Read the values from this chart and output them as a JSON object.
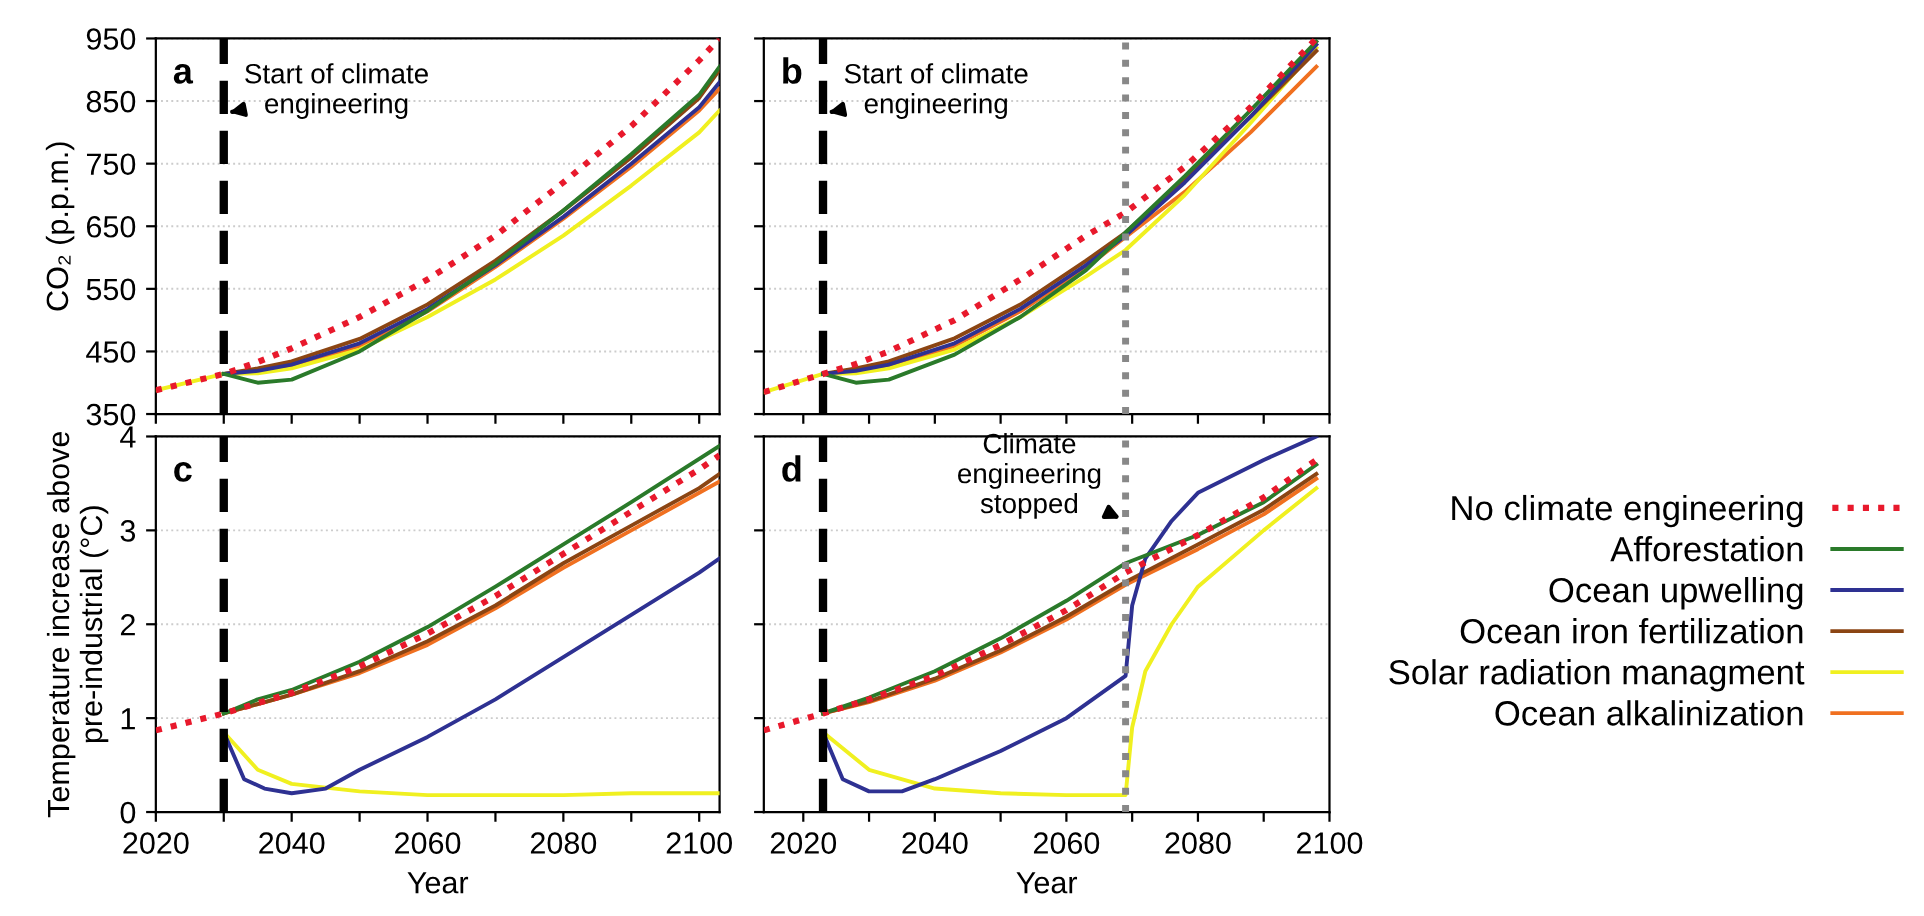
{
  "chart_data": [
    {
      "type": "line",
      "title": "a",
      "ylabel": "CO₂ (p.p.m.)",
      "xlim": [
        2020,
        2103
      ],
      "ylim": [
        350,
        950
      ],
      "yticks": [
        350,
        450,
        550,
        650,
        750,
        850,
        950
      ],
      "xticks": [
        {
          "value": 2020,
          "label": null
        },
        {
          "value": 2030,
          "label": null
        },
        {
          "value": 2040,
          "label": null
        },
        {
          "value": 2050,
          "label": null
        },
        {
          "value": 2060,
          "label": null
        },
        {
          "value": 2070,
          "label": null
        },
        {
          "value": 2080,
          "label": null
        },
        {
          "value": 2090,
          "label": null
        },
        {
          "value": 2100,
          "label": null
        }
      ],
      "tick_labels": "y",
      "grid": "y",
      "legend": "right",
      "ref_lines": [
        {
          "axis": "x",
          "value": 2030,
          "color": "#000000",
          "line_style": "dashed"
        }
      ],
      "annotations": [
        {
          "text": "Start of climate\nengineering",
          "x": 2030,
          "y": 830
        }
      ],
      "series": [
        {
          "name": "No climate engineering",
          "color": "#e8192c",
          "line_style": "dotted",
          "x": [
            2020,
            2030,
            2035,
            2040,
            2050,
            2060,
            2070,
            2080,
            2090,
            2100,
            2103
          ],
          "values": [
            388,
            414,
            433,
            455,
            505,
            565,
            635,
            720,
            810,
            915,
            950
          ]
        },
        {
          "name": "Afforestation",
          "color": "#2a7a2a",
          "x": [
            2030,
            2035,
            2040,
            2050,
            2060,
            2070,
            2080,
            2090,
            2100,
            2103
          ],
          "values": [
            414,
            400,
            405,
            450,
            515,
            590,
            675,
            765,
            860,
            905
          ]
        },
        {
          "name": "Ocean upwelling",
          "color": "#2e3192",
          "x": [
            2030,
            2035,
            2040,
            2050,
            2060,
            2070,
            2080,
            2090,
            2100,
            2103
          ],
          "values": [
            414,
            419,
            429,
            463,
            518,
            588,
            665,
            750,
            840,
            880
          ]
        },
        {
          "name": "Ocean iron fertilization",
          "color": "#8b4513",
          "x": [
            2030,
            2035,
            2040,
            2050,
            2060,
            2070,
            2080,
            2090,
            2100,
            2103
          ],
          "values": [
            414,
            423,
            434,
            470,
            525,
            595,
            675,
            760,
            855,
            900
          ]
        },
        {
          "name": "Solar radiation managment",
          "color": "#f0f020",
          "x": [
            2020,
            2030,
            2035,
            2040,
            2050,
            2060,
            2070,
            2080,
            2090,
            2100,
            2103
          ],
          "values": [
            388,
            414,
            415,
            423,
            453,
            505,
            565,
            635,
            715,
            800,
            835
          ]
        },
        {
          "name": "Ocean alkalinization",
          "color": "#f07020",
          "x": [
            2030,
            2035,
            2040,
            2050,
            2060,
            2070,
            2080,
            2090,
            2100,
            2103
          ],
          "values": [
            414,
            417,
            426,
            459,
            514,
            585,
            662,
            745,
            835,
            870
          ]
        }
      ]
    },
    {
      "type": "line",
      "title": "b",
      "xlim": [
        2014,
        2100
      ],
      "ylim": [
        350,
        950
      ],
      "yticks": [
        {
          "value": 350,
          "label": null
        },
        {
          "value": 450,
          "label": null
        },
        {
          "value": 550,
          "label": null
        },
        {
          "value": 650,
          "label": null
        },
        {
          "value": 750,
          "label": null
        },
        {
          "value": 850,
          "label": null
        },
        {
          "value": 950,
          "label": null
        }
      ],
      "xticks": [
        {
          "value": 2020,
          "label": null
        },
        {
          "value": 2030,
          "label": null
        },
        {
          "value": 2040,
          "label": null
        },
        {
          "value": 2050,
          "label": null
        },
        {
          "value": 2060,
          "label": null
        },
        {
          "value": 2070,
          "label": null
        },
        {
          "value": 2080,
          "label": null
        },
        {
          "value": 2090,
          "label": null
        },
        {
          "value": 2100,
          "label": null
        }
      ],
      "tick_labels": false,
      "grid": "y",
      "ref_lines": [
        {
          "axis": "x",
          "value": 2023,
          "color": "#000000",
          "line_style": "dashed"
        },
        {
          "axis": "x",
          "value": 2069,
          "color": "#888888",
          "line_style": "dotted"
        }
      ],
      "annotations": [
        {
          "text": "Start of climate\nengineering",
          "x": 2023,
          "y": 830
        }
      ],
      "series": [
        {
          "color": "#e8192c",
          "line_style": "dotted",
          "x": [
            2014,
            2023,
            2028,
            2033,
            2043,
            2053,
            2063,
            2069,
            2078,
            2088,
            2098
          ],
          "values": [
            385,
            414,
            430,
            450,
            500,
            565,
            635,
            672,
            745,
            840,
            950
          ]
        },
        {
          "color": "#2a7a2a",
          "x": [
            2023,
            2028,
            2033,
            2043,
            2053,
            2063,
            2069,
            2078,
            2088,
            2098
          ],
          "values": [
            414,
            400,
            405,
            445,
            505,
            580,
            640,
            730,
            835,
            945
          ]
        },
        {
          "color": "#2e3192",
          "x": [
            2023,
            2028,
            2033,
            2043,
            2053,
            2063,
            2069,
            2078,
            2088,
            2098
          ],
          "values": [
            414,
            419,
            429,
            463,
            518,
            588,
            635,
            720,
            825,
            940
          ]
        },
        {
          "color": "#8b4513",
          "x": [
            2023,
            2028,
            2033,
            2043,
            2053,
            2063,
            2069,
            2078,
            2088,
            2098
          ],
          "values": [
            414,
            423,
            434,
            471,
            525,
            595,
            640,
            725,
            825,
            930
          ]
        },
        {
          "color": "#f0f020",
          "x": [
            2014,
            2023,
            2028,
            2033,
            2043,
            2053,
            2063,
            2069,
            2078,
            2088,
            2098
          ],
          "values": [
            385,
            414,
            415,
            423,
            453,
            505,
            570,
            612,
            700,
            815,
            935
          ]
        },
        {
          "color": "#f07020",
          "x": [
            2023,
            2028,
            2033,
            2043,
            2053,
            2063,
            2069,
            2078,
            2088,
            2098
          ],
          "values": [
            414,
            417,
            426,
            459,
            514,
            584,
            633,
            705,
            800,
            905
          ]
        }
      ]
    },
    {
      "type": "line",
      "title": "c",
      "xlabel": "Year",
      "ylabel": "Temperature increase above\npre-industrial (°C)",
      "xlim": [
        2020,
        2103
      ],
      "ylim": [
        0,
        4
      ],
      "yticks": [
        0,
        1,
        2,
        3,
        4
      ],
      "xticks": [
        2020,
        {
          "value": 2030,
          "label": null
        },
        2040,
        {
          "value": 2050,
          "label": null
        },
        2060,
        {
          "value": 2070,
          "label": null
        },
        2080,
        {
          "value": 2090,
          "label": null
        },
        2100
      ],
      "grid": "y",
      "ref_lines": [
        {
          "axis": "x",
          "value": 2030,
          "color": "#000000",
          "line_style": "dashed"
        }
      ],
      "series": [
        {
          "color": "#e8192c",
          "line_style": "dotted",
          "x": [
            2020,
            2030,
            2040,
            2050,
            2060,
            2070,
            2080,
            2090,
            2100,
            2103
          ],
          "values": [
            0.87,
            1.05,
            1.27,
            1.55,
            1.9,
            2.3,
            2.75,
            3.2,
            3.65,
            3.8
          ]
        },
        {
          "color": "#2a7a2a",
          "x": [
            2030,
            2035,
            2040,
            2050,
            2060,
            2070,
            2080,
            2090,
            2103
          ],
          "values": [
            1.05,
            1.2,
            1.3,
            1.6,
            1.97,
            2.4,
            2.85,
            3.3,
            3.9
          ]
        },
        {
          "color": "#2e3192",
          "x": [
            2030,
            2033,
            2036,
            2040,
            2045,
            2050,
            2060,
            2070,
            2080,
            2090,
            2100,
            2103
          ],
          "values": [
            0.85,
            0.35,
            0.25,
            0.2,
            0.25,
            0.45,
            0.8,
            1.2,
            1.65,
            2.1,
            2.55,
            2.7
          ]
        },
        {
          "color": "#8b4513",
          "x": [
            2030,
            2035,
            2040,
            2050,
            2060,
            2070,
            2080,
            2090,
            2100,
            2103
          ],
          "values": [
            1.05,
            1.15,
            1.25,
            1.5,
            1.82,
            2.2,
            2.65,
            3.05,
            3.45,
            3.6
          ]
        },
        {
          "color": "#f0f020",
          "x": [
            2030,
            2035,
            2040,
            2050,
            2060,
            2070,
            2080,
            2090,
            2103
          ],
          "values": [
            0.85,
            0.45,
            0.3,
            0.22,
            0.18,
            0.18,
            0.18,
            0.2,
            0.2
          ]
        },
        {
          "color": "#f07020",
          "x": [
            2030,
            2035,
            2040,
            2050,
            2060,
            2070,
            2080,
            2090,
            2100,
            2103
          ],
          "values": [
            1.05,
            1.15,
            1.25,
            1.48,
            1.78,
            2.17,
            2.6,
            3.0,
            3.4,
            3.52
          ]
        }
      ]
    },
    {
      "type": "line",
      "title": "d",
      "xlabel": "Year",
      "xlim": [
        2014,
        2100
      ],
      "ylim": [
        0,
        4
      ],
      "yticks": [
        {
          "value": 0,
          "label": null
        },
        {
          "value": 1,
          "label": null
        },
        {
          "value": 2,
          "label": null
        },
        {
          "value": 3,
          "label": null
        },
        {
          "value": 4,
          "label": null
        }
      ],
      "xticks": [
        2020,
        {
          "value": 2030,
          "label": null
        },
        2040,
        {
          "value": 2050,
          "label": null
        },
        2060,
        {
          "value": 2070,
          "label": null
        },
        2080,
        {
          "value": 2090,
          "label": null
        },
        2100
      ],
      "tick_labels": "x",
      "grid": "y",
      "ref_lines": [
        {
          "axis": "x",
          "value": 2023,
          "color": "#000000",
          "line_style": "dashed"
        },
        {
          "axis": "x",
          "value": 2069,
          "color": "#888888",
          "line_style": "dotted"
        }
      ],
      "annotations": [
        {
          "text": "Climate\nengineering\nstopped",
          "x": 2069,
          "y": 3.1
        }
      ],
      "series": [
        {
          "color": "#e8192c",
          "line_style": "dotted",
          "x": [
            2014,
            2023,
            2030,
            2040,
            2050,
            2060,
            2069,
            2080,
            2090,
            2098
          ],
          "values": [
            0.87,
            1.05,
            1.2,
            1.45,
            1.78,
            2.15,
            2.55,
            2.95,
            3.35,
            3.75
          ]
        },
        {
          "color": "#2a7a2a",
          "x": [
            2023,
            2030,
            2040,
            2050,
            2060,
            2069,
            2080,
            2090,
            2098
          ],
          "values": [
            1.05,
            1.22,
            1.5,
            1.85,
            2.25,
            2.65,
            2.95,
            3.3,
            3.7
          ]
        },
        {
          "color": "#2e3192",
          "x": [
            2023,
            2026,
            2030,
            2035,
            2040,
            2050,
            2060,
            2069,
            2070,
            2072,
            2076,
            2080,
            2090,
            2098
          ],
          "values": [
            0.85,
            0.35,
            0.22,
            0.22,
            0.35,
            0.65,
            1.0,
            1.45,
            2.2,
            2.7,
            3.1,
            3.4,
            3.75,
            4.0
          ]
        },
        {
          "color": "#8b4513",
          "x": [
            2023,
            2030,
            2040,
            2050,
            2060,
            2069,
            2080,
            2090,
            2098
          ],
          "values": [
            1.05,
            1.18,
            1.42,
            1.72,
            2.08,
            2.45,
            2.85,
            3.22,
            3.6
          ]
        },
        {
          "color": "#f0f020",
          "x": [
            2023,
            2030,
            2040,
            2050,
            2060,
            2069,
            2070,
            2072,
            2076,
            2080,
            2090,
            2098
          ],
          "values": [
            0.85,
            0.45,
            0.25,
            0.2,
            0.18,
            0.18,
            0.9,
            1.5,
            2.0,
            2.4,
            3.0,
            3.45
          ]
        },
        {
          "color": "#f07020",
          "x": [
            2023,
            2030,
            2040,
            2050,
            2060,
            2069,
            2080,
            2090,
            2098
          ],
          "values": [
            1.05,
            1.17,
            1.4,
            1.7,
            2.05,
            2.42,
            2.8,
            3.17,
            3.55
          ]
        }
      ]
    }
  ]
}
